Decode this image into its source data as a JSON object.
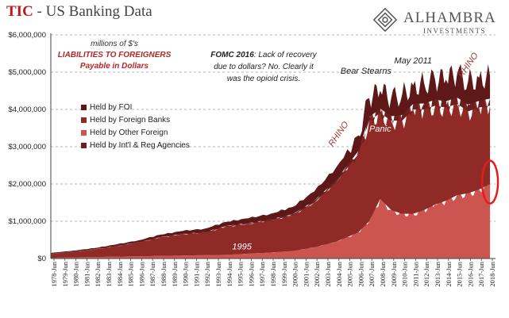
{
  "header": {
    "title_tic": "TIC",
    "title_rest": " - US Banking Data",
    "logo_name": "ALHAMBRA",
    "logo_sub": "INVESTMENTS"
  },
  "notes": {
    "units": "millions of $'s",
    "liabilities": "LIABILITIES TO FOREIGNERS",
    "payable": "Payable in Dollars",
    "fomc_bold": "FOMC 2016",
    "fomc_text": ": Lack of recovery due to dollars? No. Clearly it was the opioid crisis."
  },
  "colors": {
    "foi": "#5e1818",
    "foreign_banks": "#8f2a27",
    "other_foreign": "#cc5550",
    "intl": "#6b1f1f",
    "ring": "#e41c1c"
  },
  "chart_data": {
    "type": "area",
    "stacked": true,
    "title": "TIC - US Banking Data",
    "subtitle": "millions of $'s LIABILITIES TO FOREIGNERS Payable in Dollars",
    "xlabel": "",
    "ylabel": "",
    "ylim": [
      0,
      6000000
    ],
    "y_ticks": [
      0,
      1000000,
      2000000,
      3000000,
      4000000,
      5000000,
      6000000
    ],
    "y_tick_labels": [
      "$0",
      "$1,000,000",
      "$2,000,000",
      "$3,000,000",
      "$4,000,000",
      "$5,000,000",
      "$6,000,000"
    ],
    "grid": "horizontal dashed",
    "legend_position": "left",
    "x": [
      1978,
      1980,
      1982,
      1984,
      1986,
      1988,
      1990,
      1992,
      1994,
      1996,
      1998,
      2000,
      2002,
      2004,
      2006,
      2007,
      2008,
      2009,
      2010,
      2011,
      2012,
      2013,
      2014,
      2015,
      2016,
      2017,
      2018
    ],
    "x_tick_labels": [
      "1978-Jun",
      "1979-Jun",
      "1980-Jun",
      "1981-Jun",
      "1982-Jun",
      "1983-Jun",
      "1984-Jun",
      "1985-Jun",
      "1986-Jun",
      "1987-Jun",
      "1988-Jun",
      "1989-Jun",
      "1990-Jun",
      "1991-Jun",
      "1992-Jun",
      "1993-Jun",
      "1994-Jun",
      "1995-Jun",
      "1996-Jun",
      "1997-Jun",
      "1998-Jun",
      "1999-Jun",
      "2000-Jun",
      "2001-Jun",
      "2002-Jun",
      "2003-Jun",
      "2004-Jun",
      "2005-Jun",
      "2006-Jun",
      "2007-Jun",
      "2008-Jun",
      "2009-Jun",
      "2010-Jun",
      "2011-Jun",
      "2012-Jun",
      "2013-Jun",
      "2014-Jun",
      "2015-Jun",
      "2016-Jun",
      "2017-Jun",
      "2018-Jun"
    ],
    "series": [
      {
        "name": "Held by Other Foreign",
        "color": "#cc5550",
        "values": [
          20000,
          30000,
          40000,
          50000,
          60000,
          70000,
          80000,
          90000,
          100000,
          130000,
          160000,
          200000,
          300000,
          450000,
          700000,
          1000000,
          1600000,
          1300000,
          1200000,
          1200000,
          1300000,
          1450000,
          1550000,
          1700000,
          1750000,
          1850000,
          2000000
        ]
      },
      {
        "name": "Held by Foreign Banks",
        "color": "#8f2a27",
        "values": [
          100000,
          150000,
          200000,
          280000,
          370000,
          490000,
          570000,
          600000,
          750000,
          800000,
          860000,
          950000,
          1200000,
          1600000,
          2100000,
          2700000,
          2300000,
          2400000,
          2500000,
          2800000,
          2700000,
          2650000,
          2500000,
          2450000,
          2200000,
          2200000,
          2100000
        ]
      },
      {
        "name": "Held by Int'l & Reg Agencies",
        "color": "#6b1f1f",
        "values": [
          5000,
          5000,
          10000,
          10000,
          10000,
          15000,
          15000,
          20000,
          25000,
          25000,
          30000,
          35000,
          50000,
          60000,
          80000,
          100000,
          120000,
          120000,
          150000,
          150000,
          160000,
          160000,
          170000,
          170000,
          180000,
          180000,
          190000
        ]
      },
      {
        "name": "Held by FOI",
        "color": "#5e1818",
        "values": [
          25000,
          25000,
          30000,
          40000,
          50000,
          65000,
          75000,
          90000,
          110000,
          125000,
          150000,
          195000,
          250000,
          340000,
          420000,
          500000,
          480000,
          480000,
          550000,
          500000,
          540000,
          540000,
          580000,
          630000,
          620000,
          620000,
          610000
        ]
      }
    ],
    "legend_order": [
      "Held by FOI",
      "Held by Foreign Banks",
      "Held by Other Foreign",
      "Held by Int'l & Reg Agencies"
    ],
    "annotations": [
      {
        "text": "RHINO",
        "x": 2004.4,
        "y": 3300000,
        "rotate": -55,
        "color": "#9c3a33"
      },
      {
        "text": "Bear Stearns",
        "x": 2006.7,
        "y": 4960000,
        "rotate": 0,
        "color": "#222222"
      },
      {
        "text": "May 2011",
        "x": 2011.0,
        "y": 5230000,
        "rotate": 0,
        "color": "#222222"
      },
      {
        "text": "RHINO",
        "x": 2016.2,
        "y": 5150000,
        "rotate": -55,
        "color": "#9c3a33"
      },
      {
        "text": "Panic",
        "x": 2008.0,
        "y": 3400000,
        "rotate": 0,
        "color": "#ffffff"
      },
      {
        "text": "1995",
        "x": 1995.4,
        "y": 250000,
        "rotate": 0,
        "color": "#ffffff"
      }
    ],
    "highlight": {
      "x": 2018.0,
      "y": 2050000,
      "shape": "ellipse"
    }
  }
}
